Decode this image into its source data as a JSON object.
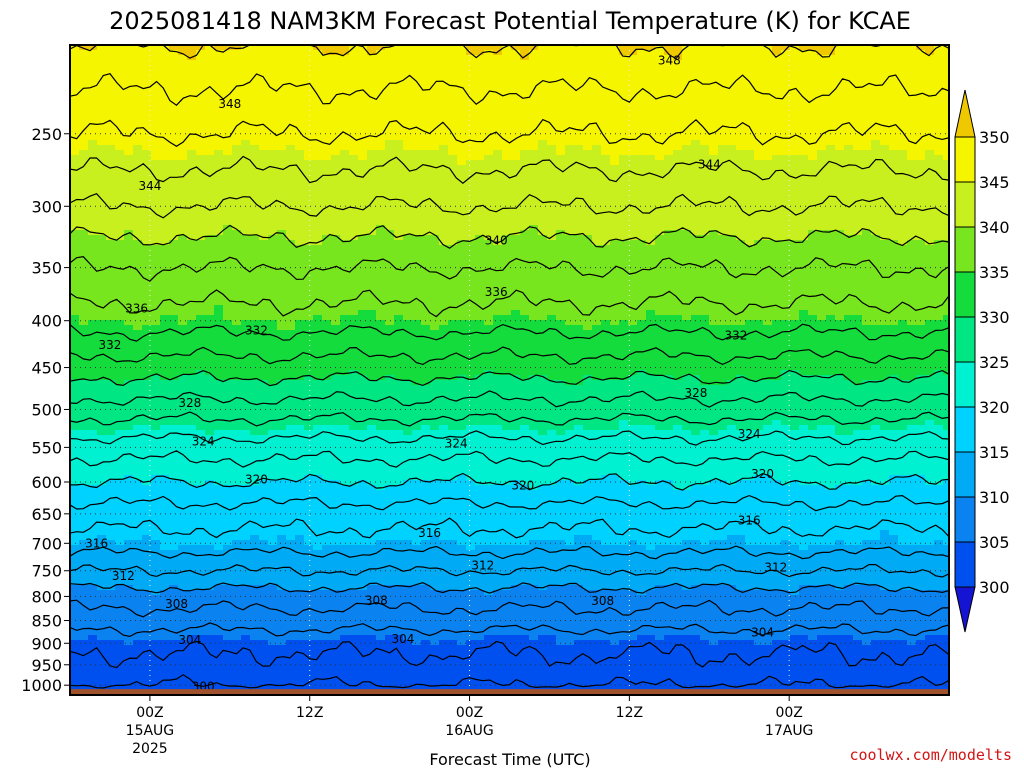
{
  "chart_data": {
    "type": "heatmap",
    "title": "2025081418 NAM3KM Forecast Potential Temperature (K) for KCAE",
    "xlabel": "Forecast Time (UTC)",
    "ylabel": "",
    "x_range": [
      "2025-08-14 18Z",
      "2025-08-17 12Z"
    ],
    "x_ticks": [
      {
        "label": "00Z",
        "date": "15AUG",
        "year": "2025",
        "hours_from_start": 6
      },
      {
        "label": "12Z",
        "date": "",
        "year": "",
        "hours_from_start": 18
      },
      {
        "label": "00Z",
        "date": "16AUG",
        "year": "",
        "hours_from_start": 30
      },
      {
        "label": "12Z",
        "date": "",
        "year": "",
        "hours_from_start": 42
      },
      {
        "label": "00Z",
        "date": "17AUG",
        "year": "",
        "hours_from_start": 54
      }
    ],
    "y_axis": {
      "units": "hPa",
      "reversed": true,
      "scale": "log",
      "range": [
        1025,
        200
      ],
      "ticks": [
        1000,
        950,
        900,
        850,
        800,
        750,
        700,
        650,
        600,
        550,
        500,
        450,
        400,
        350,
        300,
        250
      ]
    },
    "colorbar": {
      "levels": [
        300,
        305,
        310,
        315,
        320,
        325,
        330,
        335,
        340,
        345,
        350
      ],
      "colors": [
        "#1414d2",
        "#0050f0",
        "#0a82f0",
        "#00aaf5",
        "#00d2ff",
        "#00f0d2",
        "#00e682",
        "#14dc3c",
        "#78e61e",
        "#c8f01e",
        "#f5f500",
        "#f0c800"
      ],
      "extend": "both"
    },
    "ground_level_hPa": 1010,
    "ground_color": "#a0522d",
    "theta_profile": [
      {
        "p": 1010,
        "theta": 301
      },
      {
        "p": 1000,
        "theta": 302
      },
      {
        "p": 950,
        "theta": 303.5
      },
      {
        "p": 900,
        "theta": 304.5
      },
      {
        "p": 850,
        "theta": 307
      },
      {
        "p": 800,
        "theta": 309
      },
      {
        "p": 750,
        "theta": 312
      },
      {
        "p": 700,
        "theta": 315
      },
      {
        "p": 650,
        "theta": 317
      },
      {
        "p": 600,
        "theta": 320
      },
      {
        "p": 550,
        "theta": 323
      },
      {
        "p": 500,
        "theta": 327
      },
      {
        "p": 450,
        "theta": 331
      },
      {
        "p": 400,
        "theta": 335
      },
      {
        "p": 350,
        "theta": 338
      },
      {
        "p": 300,
        "theta": 342
      },
      {
        "p": 250,
        "theta": 346
      },
      {
        "p": 200,
        "theta": 350
      }
    ],
    "contour_interval": 2,
    "contour_range": [
      302,
      350
    ],
    "contour_labels": [
      {
        "value": 348,
        "hour": 12,
        "p": 232
      },
      {
        "value": 348,
        "hour": 45,
        "p": 208
      },
      {
        "value": 344,
        "hour": 6,
        "p": 285
      },
      {
        "value": 344,
        "hour": 48,
        "p": 270
      },
      {
        "value": 340,
        "hour": 32,
        "p": 327
      },
      {
        "value": 336,
        "hour": 32,
        "p": 372
      },
      {
        "value": 336,
        "hour": 5,
        "p": 388
      },
      {
        "value": 332,
        "hour": 3,
        "p": 425
      },
      {
        "value": 332,
        "hour": 14,
        "p": 410
      },
      {
        "value": 332,
        "hour": 50,
        "p": 415
      },
      {
        "value": 328,
        "hour": 9,
        "p": 492
      },
      {
        "value": 328,
        "hour": 47,
        "p": 480
      },
      {
        "value": 324,
        "hour": 29,
        "p": 545
      },
      {
        "value": 324,
        "hour": 10,
        "p": 542
      },
      {
        "value": 324,
        "hour": 51,
        "p": 532
      },
      {
        "value": 320,
        "hour": 34,
        "p": 605
      },
      {
        "value": 320,
        "hour": 14,
        "p": 596
      },
      {
        "value": 320,
        "hour": 52,
        "p": 588
      },
      {
        "value": 316,
        "hour": 2,
        "p": 700
      },
      {
        "value": 316,
        "hour": 27,
        "p": 682
      },
      {
        "value": 316,
        "hour": 51,
        "p": 661
      },
      {
        "value": 312,
        "hour": 4,
        "p": 760
      },
      {
        "value": 312,
        "hour": 31,
        "p": 740
      },
      {
        "value": 312,
        "hour": 53,
        "p": 744
      },
      {
        "value": 308,
        "hour": 8,
        "p": 815
      },
      {
        "value": 308,
        "hour": 23,
        "p": 808
      },
      {
        "value": 308,
        "hour": 40,
        "p": 809
      },
      {
        "value": 304,
        "hour": 9,
        "p": 893
      },
      {
        "value": 304,
        "hour": 25,
        "p": 890
      },
      {
        "value": 304,
        "hour": 52,
        "p": 876
      },
      {
        "value": 300,
        "hour": 10,
        "p": 1003
      }
    ],
    "grid": true,
    "legend": "right colorbar",
    "credit": "coolwx.com/modelts"
  }
}
